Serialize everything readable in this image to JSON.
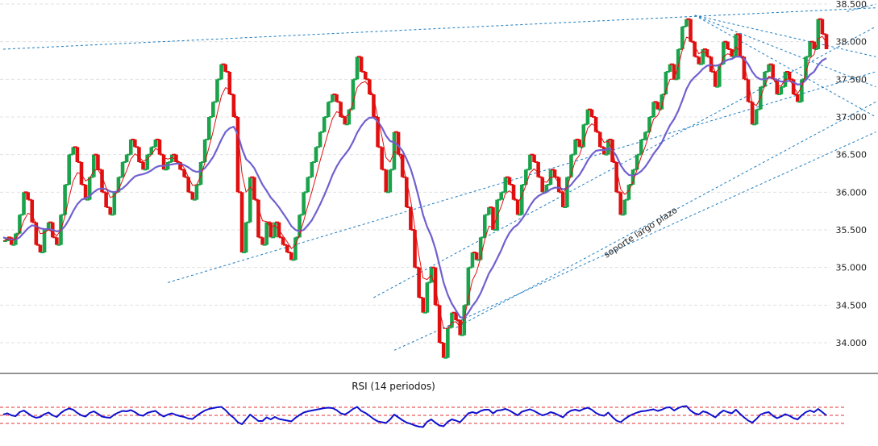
{
  "chart_data": {
    "type": "line",
    "subtype": "candlestick-with-indicators",
    "title": "",
    "colors": {
      "up": "#1aa34a",
      "down": "#e01010",
      "ma_fast": "#e01010",
      "ma_slow": "#7060d0",
      "trendline": "#1a7bc0",
      "rsi_line": "#1010d0",
      "rsi_levels": "#e03030",
      "grid": "#e0e0e0"
    },
    "y_axis": {
      "side": "right",
      "ylim": [
        33.7,
        38.5
      ],
      "ticks": [
        "38.500",
        "38.000",
        "37.500",
        "37.000",
        "36.500",
        "36.000",
        "35.500",
        "35.000",
        "34.500",
        "34.000"
      ]
    },
    "grid": "horizontal",
    "price_series": {
      "name": "",
      "close": [
        35.35,
        35.4,
        35.3,
        35.45,
        35.7,
        36.0,
        35.9,
        35.6,
        35.3,
        35.2,
        35.5,
        35.6,
        35.4,
        35.3,
        35.7,
        36.1,
        36.5,
        36.6,
        36.4,
        36.1,
        35.9,
        36.2,
        36.5,
        36.3,
        36.0,
        35.8,
        35.7,
        36.0,
        36.2,
        36.4,
        36.5,
        36.7,
        36.6,
        36.4,
        36.3,
        36.5,
        36.6,
        36.7,
        36.5,
        36.3,
        36.4,
        36.5,
        36.4,
        36.3,
        36.2,
        36.0,
        35.9,
        36.1,
        36.4,
        36.7,
        37.0,
        37.2,
        37.5,
        37.7,
        37.6,
        37.3,
        37.0,
        36.0,
        35.2,
        35.6,
        36.2,
        35.9,
        35.4,
        35.3,
        35.6,
        35.4,
        35.6,
        35.4,
        35.3,
        35.2,
        35.1,
        35.4,
        35.7,
        36.0,
        36.2,
        36.4,
        36.6,
        36.8,
        37.0,
        37.2,
        37.3,
        37.2,
        37.0,
        36.9,
        37.1,
        37.5,
        37.8,
        37.6,
        37.5,
        37.3,
        37.0,
        36.6,
        36.3,
        36.0,
        36.3,
        36.8,
        36.5,
        36.2,
        35.8,
        35.5,
        35.0,
        34.6,
        34.4,
        34.8,
        35.0,
        34.5,
        34.0,
        33.8,
        34.2,
        34.4,
        34.3,
        34.1,
        34.5,
        35.0,
        35.2,
        35.1,
        35.4,
        35.7,
        35.8,
        35.5,
        35.9,
        36.0,
        36.2,
        36.1,
        35.9,
        35.7,
        36.1,
        36.3,
        36.5,
        36.4,
        36.2,
        36.0,
        36.1,
        36.3,
        36.2,
        36.0,
        35.8,
        36.2,
        36.5,
        36.7,
        36.6,
        36.9,
        37.1,
        37.0,
        36.8,
        36.6,
        36.5,
        36.7,
        36.4,
        36.0,
        35.7,
        35.9,
        36.1,
        36.3,
        36.5,
        36.7,
        36.8,
        37.0,
        37.2,
        37.1,
        37.3,
        37.6,
        37.7,
        37.5,
        37.9,
        38.2,
        38.3,
        38.0,
        37.8,
        37.7,
        37.9,
        37.8,
        37.6,
        37.4,
        37.7,
        38.0,
        37.9,
        37.8,
        38.1,
        37.8,
        37.5,
        37.2,
        36.9,
        37.1,
        37.4,
        37.6,
        37.7,
        37.5,
        37.3,
        37.4,
        37.6,
        37.5,
        37.3,
        37.2,
        37.5,
        37.8,
        38.0,
        37.9,
        38.3,
        38.1,
        37.9
      ],
      "ma_fast": [
        35.35,
        35.38,
        35.35,
        35.38,
        35.47,
        35.62,
        35.72,
        35.7,
        35.58,
        35.45,
        35.46,
        35.5,
        35.47,
        35.42,
        35.5,
        35.68,
        35.93,
        36.15,
        36.26,
        36.24,
        36.15,
        36.18,
        36.29,
        36.3,
        36.21,
        36.06,
        35.93,
        35.95,
        36.03,
        36.16,
        36.29,
        36.44,
        36.51,
        36.47,
        36.41,
        36.44,
        36.5,
        36.58,
        36.55,
        36.46,
        36.44,
        36.46,
        36.44,
        36.39,
        36.32,
        36.2,
        36.09,
        36.1,
        36.21,
        36.39,
        36.6,
        36.81,
        37.05,
        37.28,
        37.39,
        37.36,
        37.24,
        36.82,
        36.25,
        36.0,
        36.07,
        36.0,
        35.79,
        35.62,
        35.61,
        35.53,
        35.56,
        35.5,
        35.42,
        35.34,
        35.25,
        35.3,
        35.44,
        35.62,
        35.82,
        36.01,
        36.21,
        36.42,
        36.61,
        36.8,
        36.98,
        37.07,
        37.05,
        37.0,
        37.03,
        37.19,
        37.39,
        37.45,
        37.47,
        37.4,
        37.25,
        37.0,
        36.74,
        36.46,
        36.4,
        36.54,
        36.52,
        36.39,
        36.15,
        35.89,
        35.53,
        35.16,
        34.86,
        34.84,
        34.9,
        34.74,
        34.45,
        34.19,
        34.19,
        34.27,
        34.28,
        34.21,
        34.32,
        34.59,
        34.83,
        34.94,
        35.13,
        35.37,
        35.55,
        35.53,
        35.68,
        35.81,
        35.98,
        36.02,
        35.97,
        35.85,
        35.95,
        36.09,
        36.26,
        36.31,
        36.26,
        36.15,
        36.13,
        36.2,
        36.2,
        36.12,
        35.99,
        36.07,
        36.24,
        36.42,
        36.49,
        36.66,
        36.85,
        36.91,
        36.87,
        36.76,
        36.66,
        36.68,
        36.56,
        36.32,
        36.04,
        35.97,
        36.02,
        36.14,
        36.3,
        36.47,
        36.61,
        36.79,
        36.97,
        37.02,
        37.14,
        37.35,
        37.5,
        37.5,
        37.67,
        37.89,
        38.06,
        38.04,
        37.94,
        37.84,
        37.87,
        37.84,
        37.74,
        37.59,
        37.64,
        37.8,
        37.84,
        37.82,
        37.93,
        37.87,
        37.7,
        37.46,
        37.19,
        37.15,
        37.26,
        37.41,
        37.54,
        37.52,
        37.42,
        37.41,
        37.5,
        37.5,
        37.41,
        37.31,
        37.4,
        37.59,
        37.78,
        37.83,
        38.04,
        38.07,
        37.99
      ],
      "ma_slow": [
        35.4,
        35.38,
        35.37,
        35.37,
        35.4,
        35.46,
        35.52,
        35.56,
        35.55,
        35.52,
        35.51,
        35.51,
        35.5,
        35.48,
        35.49,
        35.55,
        35.64,
        35.75,
        35.84,
        35.9,
        35.92,
        35.95,
        36.0,
        36.04,
        36.05,
        36.04,
        36.01,
        36.0,
        36.02,
        36.05,
        36.1,
        36.16,
        36.21,
        36.23,
        36.24,
        36.26,
        36.29,
        36.33,
        36.35,
        36.35,
        36.36,
        36.37,
        36.38,
        36.38,
        36.36,
        36.33,
        36.29,
        36.27,
        36.28,
        36.32,
        36.39,
        36.47,
        36.58,
        36.7,
        36.8,
        36.85,
        36.87,
        36.77,
        36.58,
        36.44,
        36.39,
        36.32,
        36.21,
        36.1,
        36.02,
        35.93,
        35.87,
        35.8,
        35.72,
        35.64,
        35.55,
        35.5,
        35.48,
        35.5,
        35.56,
        35.63,
        35.73,
        35.84,
        35.96,
        36.09,
        36.23,
        36.34,
        36.43,
        36.5,
        36.57,
        36.67,
        36.79,
        36.88,
        36.95,
        36.99,
        36.99,
        36.94,
        36.86,
        36.75,
        36.68,
        36.66,
        36.62,
        36.55,
        36.44,
        36.31,
        36.13,
        35.92,
        35.7,
        35.54,
        35.42,
        35.25,
        35.03,
        34.8,
        34.64,
        34.52,
        34.43,
        34.34,
        34.33,
        34.4,
        34.49,
        34.56,
        34.66,
        34.79,
        34.92,
        35.01,
        35.12,
        35.23,
        35.36,
        35.46,
        35.53,
        35.57,
        35.64,
        35.72,
        35.82,
        35.9,
        35.95,
        35.98,
        36.0,
        36.04,
        36.06,
        36.06,
        36.04,
        36.05,
        36.1,
        36.17,
        36.23,
        36.32,
        36.42,
        36.5,
        36.55,
        36.56,
        36.56,
        36.58,
        36.56,
        36.48,
        36.36,
        36.28,
        36.23,
        36.22,
        36.24,
        36.28,
        36.34,
        36.42,
        36.51,
        36.58,
        36.66,
        36.78,
        36.89,
        36.97,
        37.08,
        37.22,
        37.37,
        37.47,
        37.53,
        37.58,
        37.64,
        37.68,
        37.69,
        37.68,
        37.69,
        37.73,
        37.76,
        37.77,
        37.8,
        37.8,
        37.77,
        37.7,
        37.6,
        37.53,
        37.5,
        37.5,
        37.52,
        37.52,
        37.49,
        37.47,
        37.47,
        37.48,
        37.46,
        37.43,
        37.44,
        37.49,
        37.56,
        37.6,
        37.69,
        37.75,
        37.78
      ]
    },
    "annotations": [
      "soporte largo plazo"
    ],
    "rsi_panel": {
      "title": "RSI (14 periodos)",
      "values": [
        52,
        55,
        50,
        48,
        58,
        62,
        55,
        48,
        44,
        46,
        53,
        57,
        50,
        46,
        56,
        63,
        67,
        64,
        56,
        50,
        47,
        56,
        60,
        54,
        47,
        45,
        44,
        52,
        57,
        61,
        60,
        63,
        58,
        51,
        49,
        56,
        59,
        61,
        53,
        47,
        52,
        55,
        51,
        48,
        46,
        42,
        41,
        49,
        56,
        62,
        66,
        68,
        70,
        71,
        63,
        52,
        44,
        33,
        28,
        40,
        52,
        44,
        36,
        36,
        45,
        40,
        46,
        41,
        39,
        37,
        35,
        44,
        51,
        57,
        60,
        62,
        64,
        66,
        68,
        69,
        68,
        63,
        55,
        52,
        58,
        66,
        71,
        61,
        56,
        49,
        41,
        35,
        33,
        31,
        40,
        52,
        45,
        38,
        32,
        29,
        25,
        22,
        21,
        34,
        40,
        32,
        25,
        23,
        34,
        40,
        37,
        33,
        44,
        55,
        58,
        55,
        61,
        64,
        64,
        55,
        62,
        63,
        66,
        62,
        56,
        50,
        59,
        62,
        65,
        61,
        55,
        50,
        53,
        58,
        55,
        50,
        45,
        56,
        62,
        64,
        61,
        66,
        69,
        64,
        56,
        51,
        49,
        57,
        46,
        37,
        33,
        41,
        48,
        53,
        57,
        60,
        61,
        63,
        65,
        61,
        64,
        69,
        70,
        62,
        68,
        72,
        73,
        62,
        55,
        52,
        60,
        57,
        51,
        45,
        55,
        62,
        58,
        55,
        64,
        54,
        45,
        37,
        32,
        41,
        52,
        56,
        58,
        49,
        43,
        47,
        53,
        49,
        43,
        40,
        50,
        58,
        62,
        58,
        66,
        58,
        50
      ],
      "levels": [
        70,
        50,
        30
      ],
      "ylim": [
        0,
        100
      ]
    }
  }
}
